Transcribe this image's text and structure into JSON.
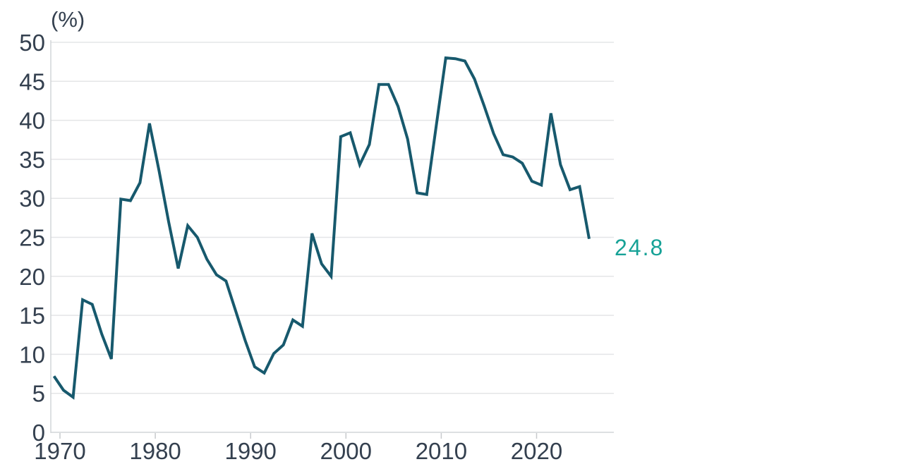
{
  "chart_data": {
    "type": "line",
    "title": "",
    "unit_label": "(%)",
    "end_label": "24.8",
    "xlabel": "",
    "ylabel": "(%)",
    "ylim": [
      0,
      50
    ],
    "grid": "horizontal",
    "legend": "none",
    "years": [
      1969,
      1970,
      1971,
      1972,
      1973,
      1974,
      1975,
      1976,
      1977,
      1978,
      1979,
      1980,
      1981,
      1982,
      1983,
      1984,
      1985,
      1986,
      1987,
      1988,
      1989,
      1990,
      1991,
      1992,
      1993,
      1994,
      1995,
      1996,
      1997,
      1998,
      1999,
      2000,
      2001,
      2002,
      2003,
      2004,
      2005,
      2006,
      2007,
      2008,
      2009,
      2010,
      2011,
      2012,
      2013,
      2014,
      2015,
      2016,
      2017,
      2018,
      2019,
      2020,
      2021,
      2022,
      2023,
      2024,
      2025
    ],
    "values": [
      7.2,
      5.4,
      4.5,
      17.0,
      16.4,
      12.6,
      9.4,
      29.9,
      29.7,
      32.0,
      39.6,
      33.5,
      27.0,
      21.0,
      26.5,
      25.0,
      22.2,
      20.2,
      19.4,
      15.6,
      11.8,
      8.4,
      7.6,
      10.1,
      11.2,
      14.4,
      13.6,
      25.5,
      21.6,
      20.0,
      37.9,
      38.4,
      34.3,
      36.9,
      44.6,
      44.6,
      41.8,
      37.6,
      30.7,
      30.5,
      39.3,
      48.0,
      47.9,
      47.6,
      45.3,
      41.9,
      38.3,
      35.6,
      35.3,
      34.5,
      32.2,
      31.7,
      40.9,
      34.3,
      31.1,
      31.5,
      24.8
    ],
    "y_ticks": [
      0,
      5,
      10,
      15,
      20,
      25,
      30,
      35,
      40,
      45,
      50
    ],
    "y_tick_labels": [
      "0",
      "5",
      "10",
      "15",
      "20",
      "25",
      "30",
      "35",
      "40",
      "45",
      "50"
    ],
    "x_tick_years": [
      1970,
      1980,
      1990,
      2000,
      2010,
      2020
    ],
    "x_tick_labels": [
      "1970",
      "1980",
      "1990",
      "2000",
      "2010",
      "2020"
    ],
    "colors": {
      "line": "#17596D",
      "end_label": "#17A297",
      "axis_text": "#34404F",
      "gridline": "#E4E5E7",
      "axis_line": "#D2D5D8",
      "tick_mark": "#C7CACD"
    }
  }
}
